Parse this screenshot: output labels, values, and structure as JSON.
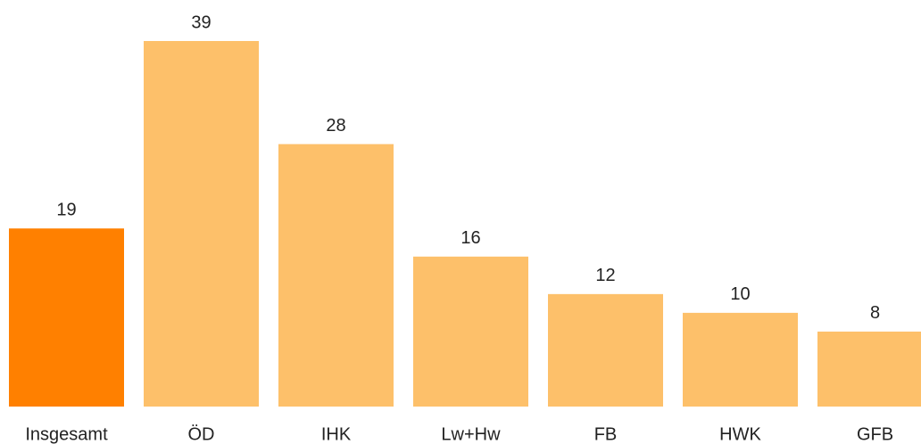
{
  "chart_data": {
    "type": "bar",
    "categories": [
      "Insgesamt",
      "ÖD",
      "IHK",
      "Lw+Hw",
      "FB",
      "HWK",
      "GFB"
    ],
    "values": [
      19,
      39,
      28,
      16,
      12,
      10,
      8
    ],
    "colors": [
      "#ff8000",
      "#fdc06a",
      "#fdc06a",
      "#fdc06a",
      "#fdc06a",
      "#fdc06a",
      "#fdc06a"
    ]
  }
}
